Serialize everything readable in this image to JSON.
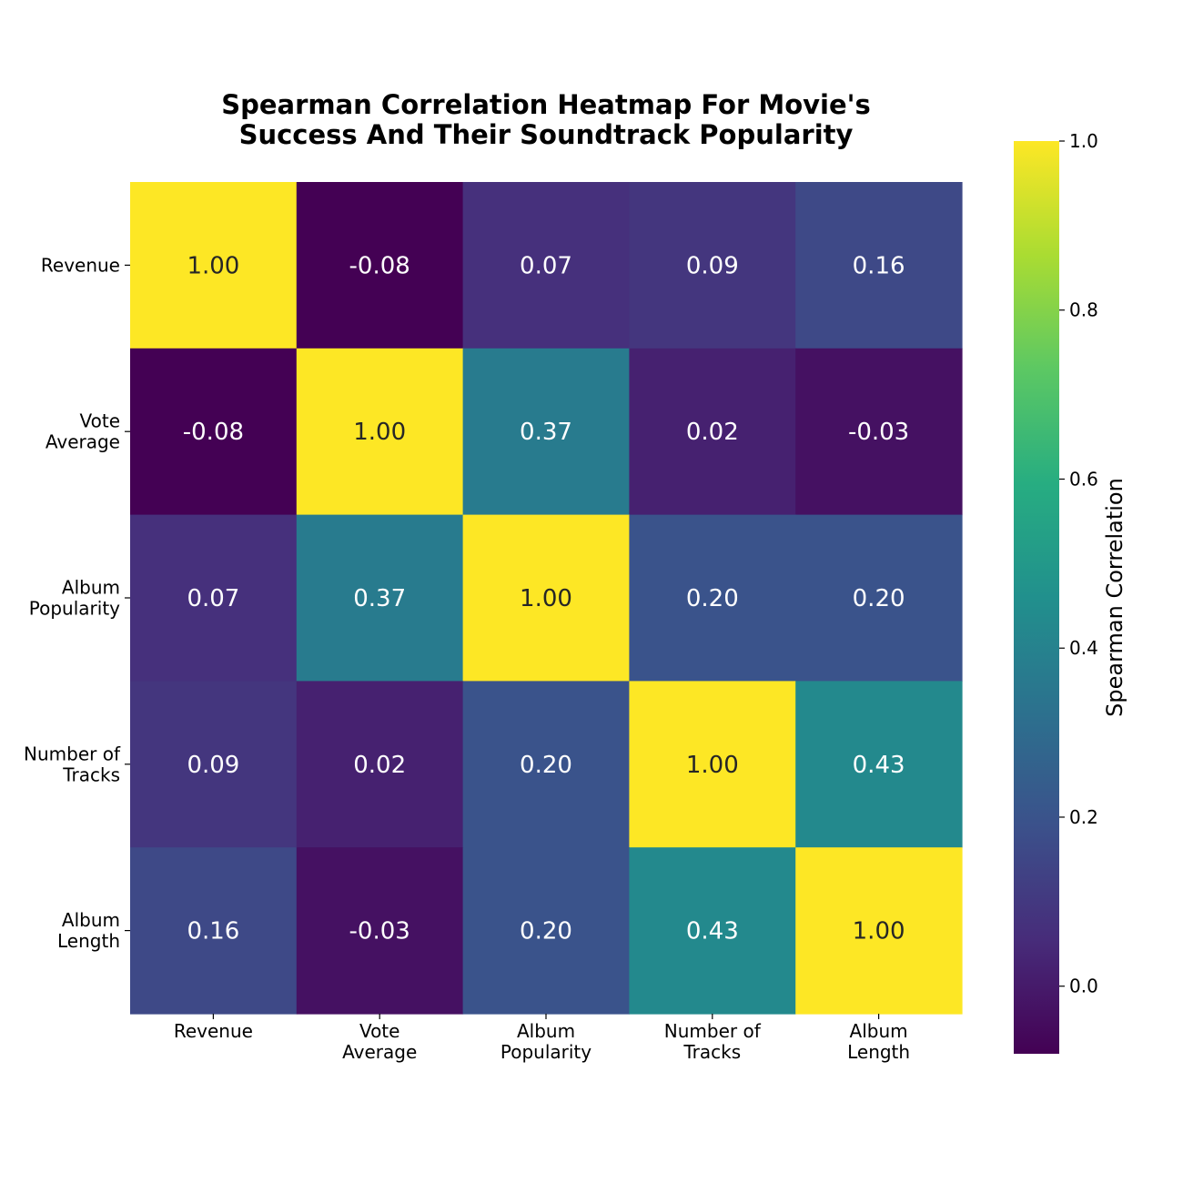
{
  "chart_data": {
    "type": "heatmap",
    "title_lines": [
      "Spearman Correlation Heatmap For Movie's",
      "Success And Their Soundtrack Popularity"
    ],
    "rows": [
      [
        "Revenue"
      ],
      [
        "Vote",
        "Average"
      ],
      [
        "Album",
        "Popularity"
      ],
      [
        "Number of",
        "Tracks"
      ],
      [
        "Album",
        "Length"
      ]
    ],
    "columns": [
      [
        "Revenue"
      ],
      [
        "Vote",
        "Average"
      ],
      [
        "Album",
        "Popularity"
      ],
      [
        "Number of",
        "Tracks"
      ],
      [
        "Album",
        "Length"
      ]
    ],
    "values": [
      [
        1.0,
        -0.08,
        0.07,
        0.09,
        0.16
      ],
      [
        -0.08,
        1.0,
        0.37,
        0.02,
        -0.03
      ],
      [
        0.07,
        0.37,
        1.0,
        0.2,
        0.2
      ],
      [
        0.09,
        0.02,
        0.2,
        1.0,
        0.43
      ],
      [
        0.16,
        -0.03,
        0.2,
        0.43,
        1.0
      ]
    ],
    "value_format_decimals": 2,
    "colormap": "viridis",
    "vmin": -0.08,
    "vmax": 1.0,
    "colorbar": {
      "label": "Spearman Correlation",
      "ticks": [
        0.0,
        0.2,
        0.4,
        0.6,
        0.8,
        1.0
      ],
      "tick_labels": [
        "0.0",
        "0.2",
        "0.4",
        "0.6",
        "0.8",
        "1.0"
      ]
    }
  }
}
